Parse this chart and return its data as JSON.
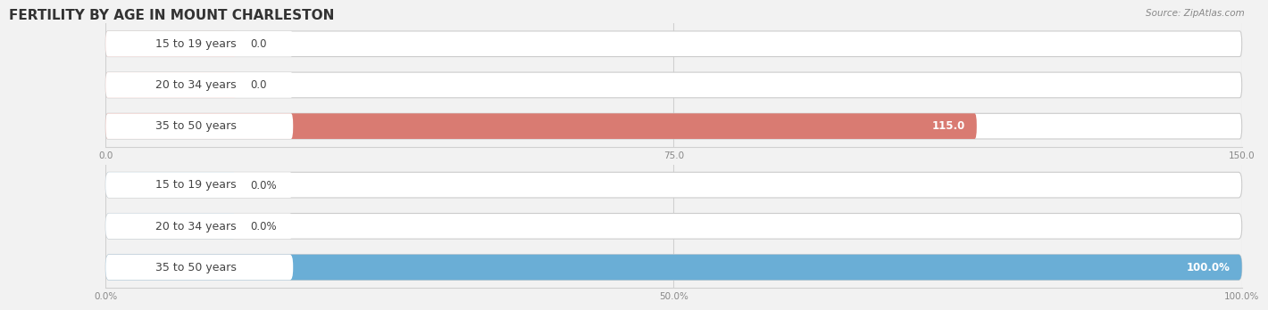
{
  "title": "FERTILITY BY AGE IN MOUNT CHARLESTON",
  "source": "Source: ZipAtlas.com",
  "top_chart": {
    "categories": [
      "15 to 19 years",
      "20 to 34 years",
      "35 to 50 years"
    ],
    "values": [
      0.0,
      0.0,
      115.0
    ],
    "xlim": [
      0,
      150
    ],
    "xticks": [
      0.0,
      75.0,
      150.0
    ],
    "xtick_labels": [
      "0.0",
      "75.0",
      "150.0"
    ],
    "bar_color_full": "#d97b72",
    "bar_color_light": "#f2b8b3",
    "value_labels": [
      "0.0",
      "0.0",
      "115.0"
    ]
  },
  "bottom_chart": {
    "categories": [
      "15 to 19 years",
      "20 to 34 years",
      "35 to 50 years"
    ],
    "values": [
      0.0,
      0.0,
      100.0
    ],
    "xlim": [
      0,
      100
    ],
    "xticks": [
      0.0,
      50.0,
      100.0
    ],
    "xtick_labels": [
      "0.0%",
      "50.0%",
      "100.0%"
    ],
    "bar_color_full": "#6aaed6",
    "bar_color_light": "#aecde0",
    "value_labels": [
      "0.0%",
      "0.0%",
      "100.0%"
    ]
  },
  "background_color": "#f2f2f2",
  "bar_bg_color": "#f0f0f0",
  "label_font_size": 9,
  "title_font_size": 11,
  "value_font_size": 8.5,
  "bar_height": 0.62,
  "label_color": "#444444",
  "axis_color": "#d0d0d0",
  "tick_color": "#888888"
}
